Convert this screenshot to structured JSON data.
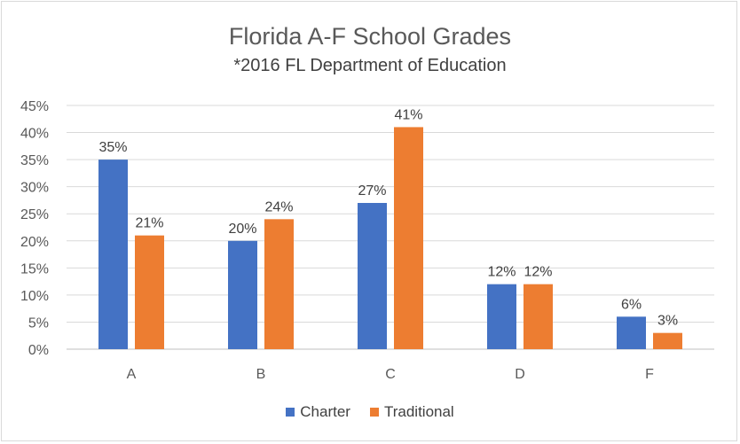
{
  "chart_data": {
    "type": "bar",
    "title": "Florida A-F School Grades",
    "subtitle": "*2016 FL Department of Education",
    "categories": [
      "A",
      "B",
      "C",
      "D",
      "F"
    ],
    "series": [
      {
        "name": "Charter",
        "color": "#4472c4",
        "values": [
          35,
          20,
          27,
          12,
          6
        ],
        "labels": [
          "35%",
          "20%",
          "27%",
          "12%",
          "6%"
        ]
      },
      {
        "name": "Traditional",
        "color": "#ed7d31",
        "values": [
          21,
          24,
          41,
          12,
          3
        ],
        "labels": [
          "21%",
          "24%",
          "41%",
          "12%",
          "3%"
        ]
      }
    ],
    "ylim": [
      0,
      45
    ],
    "yticks": [
      "0%",
      "5%",
      "10%",
      "15%",
      "20%",
      "25%",
      "30%",
      "35%",
      "40%",
      "45%"
    ],
    "grid": true,
    "legend_position": "bottom"
  }
}
